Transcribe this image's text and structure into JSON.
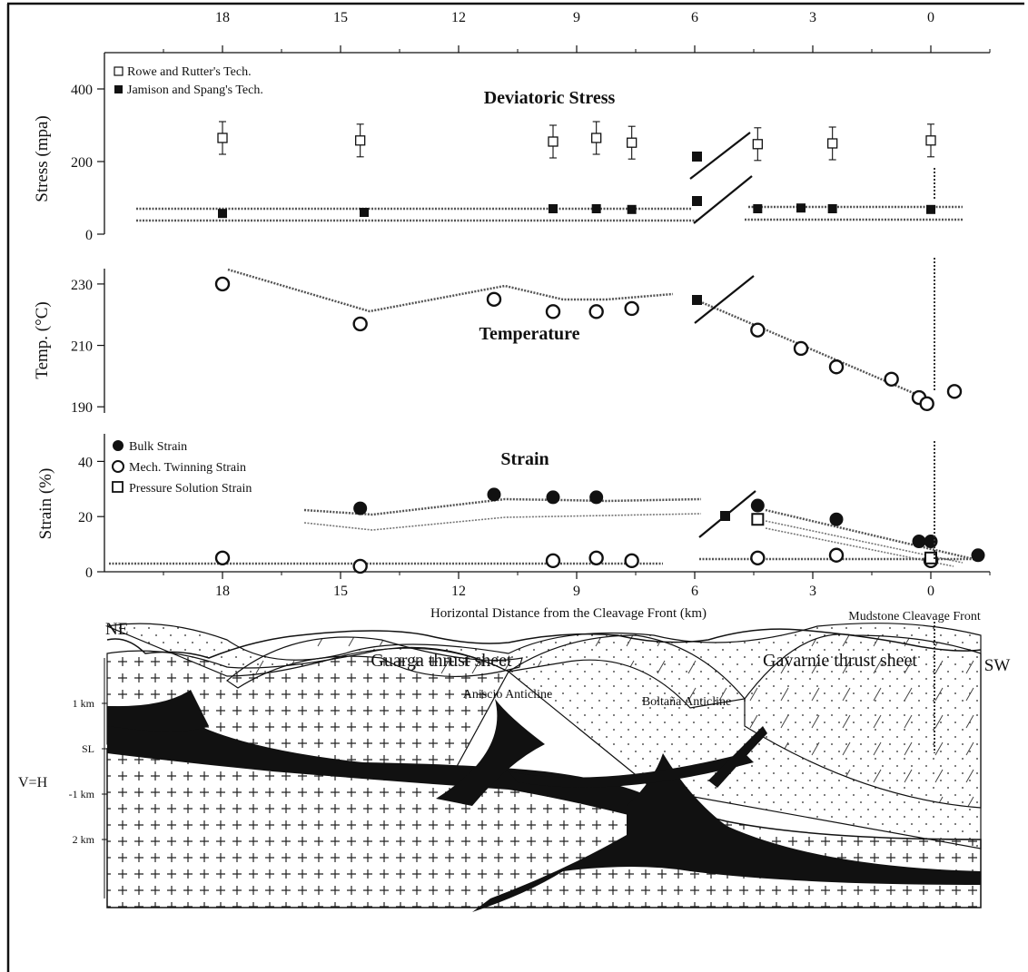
{
  "chart_data": {
    "type": "scatter",
    "x_axis": {
      "label": "Horizontal Distance from the Cleavage Front (km)",
      "ticks": [
        18,
        15,
        12,
        9,
        6,
        3,
        0
      ],
      "reversed": true,
      "range": [
        21.0,
        -1.5
      ]
    },
    "panels": [
      {
        "id": "stress",
        "title": "Deviatoric Stress",
        "ylabel": "Stress (mpa)",
        "yticks": [
          0,
          200,
          400
        ],
        "ylim": [
          0,
          500
        ],
        "legend": [
          "Rowe and Rutter's Tech.",
          "Jamison and Spang's Tech."
        ],
        "series": [
          {
            "name": "Rowe and Rutter's Tech.",
            "marker": "open-square",
            "x": [
              18,
              14.5,
              9.6,
              8.5,
              7.6,
              4.4,
              2.5,
              0
            ],
            "y": [
              265,
              258,
              255,
              265,
              252,
              248,
              250,
              258
            ],
            "err": [
              45,
              45,
              45,
              45,
              45,
              45,
              45,
              45
            ]
          },
          {
            "name": "Jamison and Spang's Tech.",
            "marker": "filled-square",
            "x": [
              18,
              14.4,
              9.6,
              8.5,
              7.6,
              4.4,
              3.3,
              2.5,
              0
            ],
            "y": [
              57,
              60,
              70,
              70,
              68,
              70,
              72,
              70,
              68
            ]
          }
        ]
      },
      {
        "id": "temperature",
        "title": "Temperature",
        "ylabel": "Temp. (°C)",
        "yticks": [
          190,
          210,
          230
        ],
        "ylim": [
          188,
          235
        ],
        "series": [
          {
            "name": "Temperature",
            "marker": "open-circle",
            "x": [
              18,
              14.5,
              11.1,
              9.6,
              8.5,
              7.6,
              4.4,
              3.3,
              2.4,
              1.0,
              0.3,
              0.1,
              -0.6
            ],
            "y": [
              230,
              217,
              225,
              221,
              221,
              222,
              215,
              209,
              203,
              199,
              193,
              191,
              195
            ]
          }
        ]
      },
      {
        "id": "strain",
        "title": "Strain",
        "ylabel": "Strain (%)",
        "yticks": [
          0,
          20,
          40
        ],
        "ylim": [
          0,
          50
        ],
        "legend": [
          "Bulk Strain",
          "Mech. Twinning Strain",
          "Pressure Solution Strain"
        ],
        "series": [
          {
            "name": "Bulk Strain",
            "marker": "filled-circle",
            "x": [
              14.5,
              11.1,
              9.6,
              8.5,
              4.4,
              2.4,
              0.3,
              0.0,
              -1.2
            ],
            "y": [
              23,
              28,
              27,
              27,
              24,
              19,
              11,
              11,
              6
            ]
          },
          {
            "name": "Mech. Twinning Strain",
            "marker": "open-circle",
            "x": [
              18,
              14.5,
              9.6,
              8.5,
              7.6,
              4.4,
              2.4,
              0.0
            ],
            "y": [
              5,
              2,
              4,
              5,
              4,
              5,
              6,
              4
            ]
          },
          {
            "name": "Pressure Solution Strain",
            "marker": "open-square",
            "x": [
              4.4,
              0.0
            ],
            "y": [
              19,
              5
            ]
          }
        ]
      }
    ]
  },
  "annotations": {
    "cleavage_front": "Mudstone Cleavage Front"
  },
  "cross_section": {
    "label_ne": "NE",
    "label_sw": "SW",
    "sheet_left": "Guarga thrust sheet",
    "sheet_right": "Gavarnie thrust sheet",
    "anticline_1": "Aniscio Anticline",
    "anticline_2": "Boltaña Anticline",
    "scale": "V=H",
    "depths": [
      "1 km",
      "SL",
      "-1 km",
      "2 km"
    ]
  },
  "colors": {
    "ink": "#111111",
    "trend": "#555555"
  }
}
